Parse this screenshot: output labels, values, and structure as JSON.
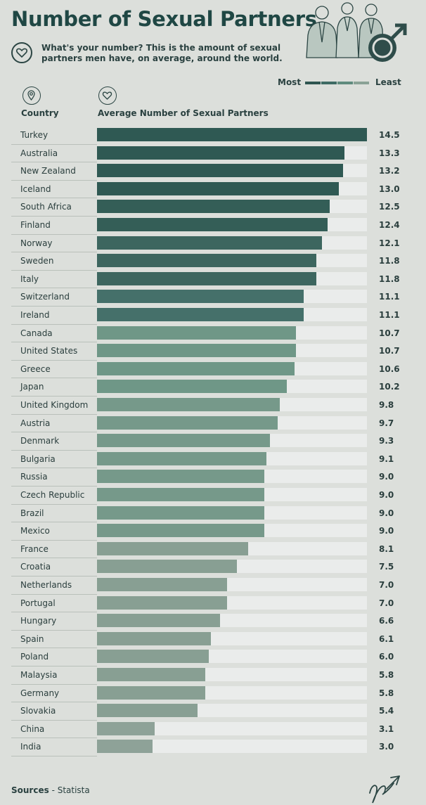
{
  "title": "Number of Sexual Partners",
  "subtitle": "What's your number? This is the amount of sexual partners men have, on average, around the world.",
  "legend": {
    "most": "Most",
    "least": "Least",
    "colors": [
      "#2e5550",
      "#3e6b64",
      "#5f8b7e",
      "#8aa296"
    ]
  },
  "columns": {
    "country": "Country",
    "average": "Average Number of Sexual Partners"
  },
  "sources": {
    "label": "Sources",
    "value": "Statista"
  },
  "icons": [
    "heart-icon",
    "location-pin-icon",
    "people-illustration-icon",
    "male-symbol-icon",
    "signature-logo-icon"
  ],
  "chart_data": {
    "type": "bar",
    "orientation": "horizontal",
    "xlim": [
      0,
      14.5
    ],
    "categories": [
      "Turkey",
      "Australia",
      "New Zealand",
      "Iceland",
      "South Africa",
      "Finland",
      "Norway",
      "Sweden",
      "Italy",
      "Switzerland",
      "Ireland",
      "Canada",
      "United States",
      "Greece",
      "Japan",
      "United Kingdom",
      "Austria",
      "Denmark",
      "Bulgaria",
      "Russia",
      "Czech Republic",
      "Brazil",
      "Mexico",
      "France",
      "Croatia",
      "Netherlands",
      "Portugal",
      "Hungary",
      "Spain",
      "Poland",
      "Malaysia",
      "Germany",
      "Slovakia",
      "China",
      "India"
    ],
    "values": [
      14.5,
      13.3,
      13.2,
      13.0,
      12.5,
      12.4,
      12.1,
      11.8,
      11.8,
      11.1,
      11.1,
      10.7,
      10.7,
      10.6,
      10.2,
      9.8,
      9.7,
      9.3,
      9.1,
      9.0,
      9.0,
      9.0,
      9.0,
      8.1,
      7.5,
      7.0,
      7.0,
      6.6,
      6.1,
      6.0,
      5.8,
      5.8,
      5.4,
      3.1,
      3.0
    ],
    "labels": [
      "14.5",
      "13.3",
      "13.2",
      "13.0",
      "12.5",
      "12.4",
      "12.1",
      "11.8",
      "11.8",
      "11.1",
      "11.1",
      "10.7",
      "10.7",
      "10.6",
      "10.2",
      "9.8",
      "9.7",
      "9.3",
      "9.1",
      "9.0",
      "9.0",
      "9.0",
      "9.0",
      "8.1",
      "7.5",
      "7.0",
      "7.0",
      "6.6",
      "6.1",
      "6.0",
      "5.8",
      "5.8",
      "5.4",
      "3.1",
      "3.0"
    ],
    "colors": [
      "#2f5953",
      "#2f5953",
      "#2f5953",
      "#2f5953",
      "#345e57",
      "#345e57",
      "#3d665f",
      "#3d665f",
      "#3d665f",
      "#45706a",
      "#45706a",
      "#6f9787",
      "#6f9787",
      "#6f9787",
      "#6f9787",
      "#76998a",
      "#76998a",
      "#76998a",
      "#76998a",
      "#76998a",
      "#76998a",
      "#76998a",
      "#76998a",
      "#889f93",
      "#889f93",
      "#889f93",
      "#889f93",
      "#889f93",
      "#889f93",
      "#889f93",
      "#889f93",
      "#889f93",
      "#889f93",
      "#8ea298",
      "#8ea298"
    ]
  }
}
